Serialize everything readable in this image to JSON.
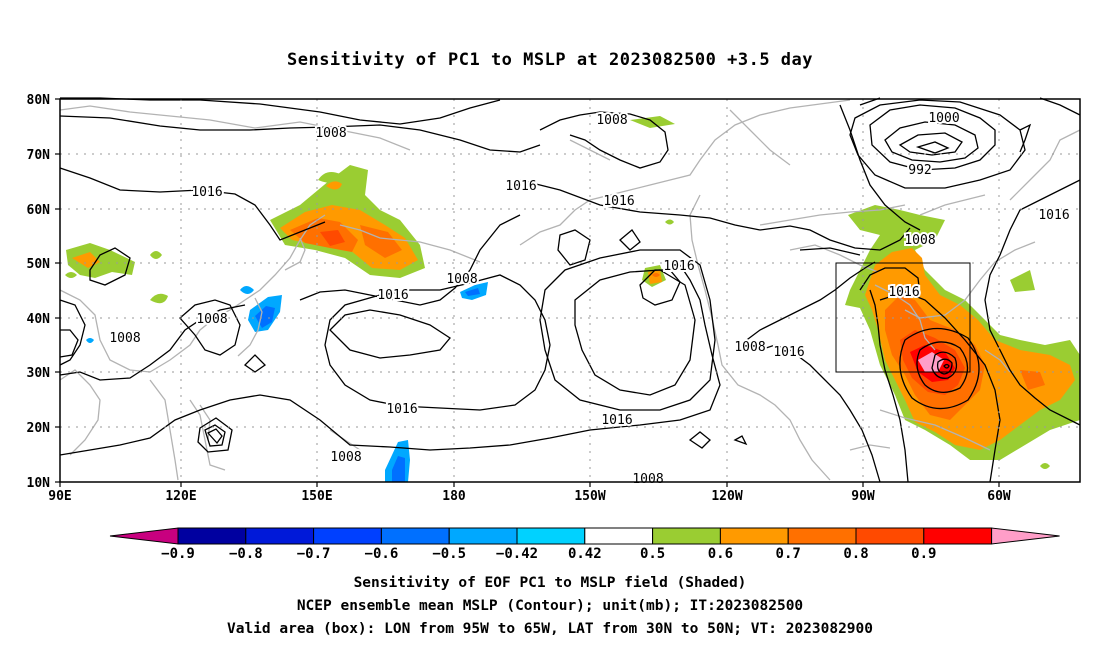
{
  "title": "Sensitivity of PC1 to MSLP at 2023082500 +3.5 day",
  "map": {
    "lat_ticks": [
      "80N",
      "70N",
      "60N",
      "50N",
      "40N",
      "30N",
      "20N",
      "10N"
    ],
    "lon_ticks": [
      "90E",
      "120E",
      "150E",
      "180",
      "150W",
      "120W",
      "90W",
      "60W"
    ],
    "contour_labels": [
      "1008",
      "1016",
      "1008",
      "1008",
      "1000",
      "992",
      "1016",
      "1016",
      "1016",
      "1008",
      "1016",
      "1016",
      "1008",
      "1008",
      "1016",
      "1016",
      "1008",
      "1016",
      "1016",
      "1008",
      "1008"
    ],
    "valid_area_box": {
      "lon_range": [
        "95W",
        "65W"
      ],
      "lat_range": [
        "30N",
        "50N"
      ]
    }
  },
  "colorbar": {
    "labels": [
      "-0.9",
      "-0.8",
      "-0.7",
      "-0.6",
      "-0.5",
      "-0.42",
      "0.42",
      "0.5",
      "0.6",
      "0.7",
      "0.8",
      "0.9"
    ],
    "colors": [
      "#c8007f",
      "#0000a0",
      "#0019d9",
      "#0040ff",
      "#0070ff",
      "#00a8ff",
      "#00d2ff",
      "#ffffff",
      "#9acd32",
      "#ff9a00",
      "#ff7000",
      "#ff4a00",
      "#ff0000",
      "#ff9ec8"
    ]
  },
  "captions": [
    "Sensitivity of EOF PC1 to MSLP field (Shaded)",
    "NCEP ensemble mean MSLP (Contour); unit(mb); IT:2023082500",
    "Valid area (box): LON from 95W to 65W, LAT from 30N to 50N; VT: 2023082900"
  ]
}
